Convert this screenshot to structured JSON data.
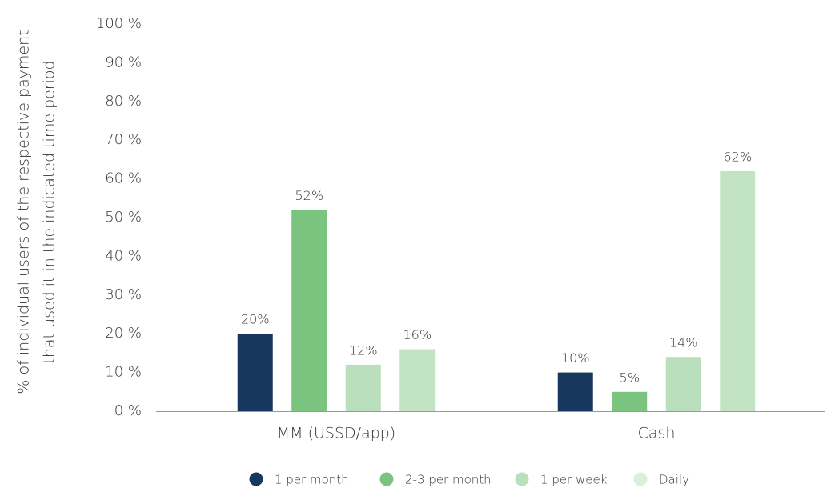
{
  "chart_data": {
    "type": "bar",
    "ylabel": [
      "% of  individual users of the respective payment",
      "that used it in the indicated time period"
    ],
    "categories": [
      "MM (USSD/app)",
      "Cash"
    ],
    "series": [
      {
        "name": "1 per month",
        "color": "#17375e",
        "values": [
          20,
          10
        ],
        "value_labels": [
          "20%",
          "10%"
        ]
      },
      {
        "name": "2-3 per month",
        "color": "#7bc47f",
        "values": [
          52,
          5
        ],
        "value_labels": [
          "52%",
          "5%"
        ]
      },
      {
        "name": "1 per week",
        "color": "#b9dfbc",
        "values": [
          12,
          14
        ],
        "value_labels": [
          "12%",
          "14%"
        ]
      },
      {
        "name": "Daily",
        "color": "#c2e3c4",
        "values": [
          16,
          62
        ],
        "value_labels": [
          "16%",
          "62%"
        ]
      }
    ],
    "ylim": [
      0,
      100
    ],
    "yticks": [
      {
        "value": 0,
        "label": "0 %"
      },
      {
        "value": 10,
        "label": "10 %"
      },
      {
        "value": 20,
        "label": "20 %"
      },
      {
        "value": 30,
        "label": "30 %"
      },
      {
        "value": 40,
        "label": "40 %"
      },
      {
        "value": 50,
        "label": "50 %"
      },
      {
        "value": 60,
        "label": "60 %"
      },
      {
        "value": 70,
        "label": "70 %"
      },
      {
        "value": 80,
        "label": "80 %"
      },
      {
        "value": 90,
        "label": "90 %"
      },
      {
        "value": 100,
        "label": "100 %"
      }
    ],
    "legend": "bottom"
  }
}
